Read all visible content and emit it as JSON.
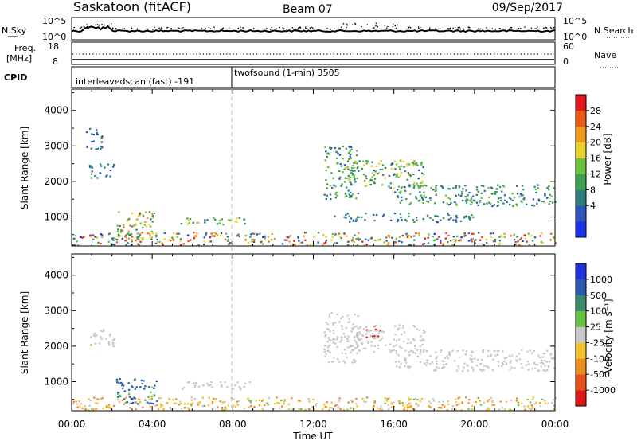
{
  "header": {
    "station": "Saskatoon (fitACF)",
    "beam": "Beam 07",
    "date": "09/Sep/2017"
  },
  "noise_panel": {
    "left_label": "N.Sky",
    "right_label": "N.Search",
    "left_ticks": [
      "10^5",
      "10^0"
    ],
    "right_ticks": [
      "10^5",
      "10^0"
    ]
  },
  "freq_panel": {
    "left_label_1": "Freq.",
    "left_label_2": "[MHz]",
    "right_label": "Nave",
    "left_ticks": [
      "18",
      "8"
    ],
    "right_ticks": [
      "60",
      "0"
    ]
  },
  "cpid_panel": {
    "label": "CPID",
    "mode_1": "interleavedscan (fast) -191",
    "mode_2": "twofsound (1-min) 3505"
  },
  "axes": {
    "ylabel": "Slant Range [km]",
    "yticks": [
      "4000",
      "3000",
      "2000",
      "1000"
    ],
    "xticks": [
      "00:00",
      "04:00",
      "08:00",
      "12:00",
      "16:00",
      "20:00",
      "00:00"
    ],
    "xlabel": "Time UT"
  },
  "colors": {
    "power_scale": [
      "#1a33ee",
      "#2c56b8",
      "#2f7e7e",
      "#3e9e52",
      "#6cc23a",
      "#ead12a",
      "#ef9a1c",
      "#ea5a14",
      "#e41a1a"
    ],
    "velocity_scale": [
      "#2233dd",
      "#2c5cb0",
      "#3a8a6a",
      "#66c23e",
      "#c8c8c8",
      "#f0c42a",
      "#ee8c1c",
      "#e8501a",
      "#e01818"
    ]
  },
  "chart_data": [
    {
      "type": "heatmap",
      "quantity": "Power",
      "colorbar_label": "Power [dB]",
      "colorbar_ticks": [
        "28",
        "24",
        "20",
        "16",
        "12",
        "8",
        "4"
      ],
      "colorbar_range": [
        0,
        30
      ],
      "xlim_hours": [
        0,
        24
      ],
      "ylim_km": [
        180,
        4600
      ],
      "echo_regions": [
        {
          "t0": 0.0,
          "t1": 24.0,
          "r0": 200,
          "r1": 560,
          "v0": 2,
          "v1": 30
        },
        {
          "t0": 0.8,
          "t1": 2.1,
          "r0": 2100,
          "r1": 2500,
          "v0": 4,
          "v1": 12
        },
        {
          "t0": 0.6,
          "t1": 1.5,
          "r0": 2900,
          "r1": 3500,
          "v0": 4,
          "v1": 10
        },
        {
          "t0": 2.2,
          "t1": 4.2,
          "r0": 350,
          "r1": 1150,
          "v0": 8,
          "v1": 26
        },
        {
          "t0": 5.4,
          "t1": 8.9,
          "r0": 780,
          "r1": 1000,
          "v0": 8,
          "v1": 20
        },
        {
          "t0": 12.5,
          "t1": 14.2,
          "r0": 1500,
          "r1": 3000,
          "v0": 4,
          "v1": 16
        },
        {
          "t0": 13.5,
          "t1": 17.5,
          "r0": 1800,
          "r1": 2600,
          "v0": 6,
          "v1": 20
        },
        {
          "t0": 16.0,
          "t1": 24.0,
          "r0": 1300,
          "r1": 1900,
          "v0": 4,
          "v1": 16
        },
        {
          "t0": 13.0,
          "t1": 20.0,
          "r0": 850,
          "r1": 1100,
          "v0": 4,
          "v1": 12
        }
      ]
    },
    {
      "type": "heatmap",
      "quantity": "Velocity",
      "colorbar_label": "Velocity [m s⁻¹]",
      "colorbar_ticks": [
        "1000",
        "500",
        "100",
        "25",
        "-25",
        "-100",
        "-500",
        "-1000"
      ],
      "colorbar_range": [
        -1200,
        1200
      ],
      "xlim_hours": [
        0,
        24
      ],
      "ylim_km": [
        180,
        4600
      ],
      "echo_regions": [
        {
          "t0": 0.0,
          "t1": 24.0,
          "r0": 200,
          "r1": 560,
          "v0": -150,
          "v1": 40
        },
        {
          "t0": 0.8,
          "t1": 2.1,
          "r0": 2000,
          "r1": 2500,
          "v0": -10,
          "v1": 30
        },
        {
          "t0": 2.2,
          "t1": 4.2,
          "r0": 350,
          "r1": 1100,
          "v0": 80,
          "v1": 200
        },
        {
          "t0": 5.4,
          "t1": 8.9,
          "r0": 780,
          "r1": 1000,
          "v0": -20,
          "v1": 20
        },
        {
          "t0": 12.5,
          "t1": 14.2,
          "r0": 1500,
          "r1": 3000,
          "v0": -20,
          "v1": 20
        },
        {
          "t0": 14.5,
          "t1": 15.3,
          "r0": 2200,
          "r1": 2600,
          "v0": -1000,
          "v1": -500
        },
        {
          "t0": 14.0,
          "t1": 17.5,
          "r0": 1800,
          "r1": 2600,
          "v0": -20,
          "v1": 20
        },
        {
          "t0": 16.0,
          "t1": 24.0,
          "r0": 1300,
          "r1": 1900,
          "v0": -20,
          "v1": 20
        }
      ]
    }
  ]
}
